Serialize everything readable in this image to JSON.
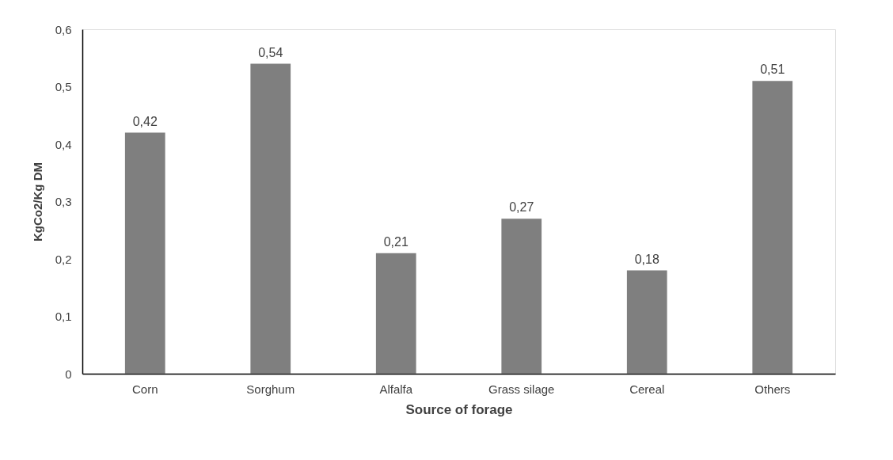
{
  "chart_data": {
    "type": "bar",
    "xlabel": "Source of forage",
    "ylabel": "KgCo2/Kg DM",
    "categories": [
      "Corn",
      "Sorghum",
      "Alfalfa",
      "Grass silage",
      "Cereal",
      "Others"
    ],
    "values": [
      0.42,
      0.54,
      0.21,
      0.27,
      0.18,
      0.51
    ],
    "value_labels": [
      "0,42",
      "0,54",
      "0,21",
      "0,27",
      "0,18",
      "0,51"
    ],
    "color": "#7f7f7f",
    "ylim": [
      0,
      0.6
    ],
    "yticks": [
      0,
      {
        "value": 0.1,
        "label": "0,1"
      },
      {
        "value": 0.2,
        "label": "0,2"
      },
      {
        "value": 0.3,
        "label": "0,3"
      },
      {
        "value": 0.4,
        "label": "0,4"
      },
      {
        "value": 0.5,
        "label": "0,5"
      },
      {
        "value": 0.6,
        "label": "0,6"
      }
    ],
    "grid": false
  }
}
